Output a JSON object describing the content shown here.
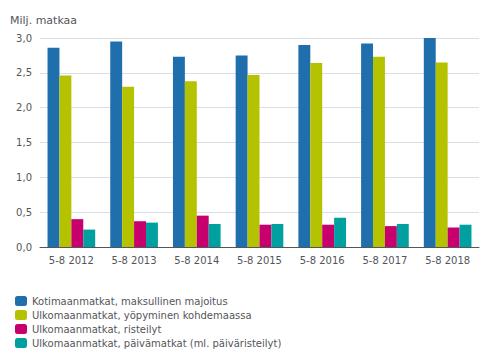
{
  "chart_data": {
    "type": "bar",
    "ylabel": "Milj. matkaa",
    "categories": [
      "5-8 2012",
      "5-8 2013",
      "5-8 2014",
      "5-8 2015",
      "5-8 2016",
      "5-8 2017",
      "5-8 2018"
    ],
    "series": [
      {
        "name": "Kotimaanmatkat, maksullinen majoitus",
        "color": "#1f6fad",
        "values": [
          2.86,
          2.95,
          2.73,
          2.75,
          2.9,
          2.92,
          3.0
        ]
      },
      {
        "name": "Ulkomaanmatkat, yöpyminen kohdemaassa",
        "color": "#b5c200",
        "values": [
          2.46,
          2.3,
          2.38,
          2.47,
          2.64,
          2.73,
          2.65
        ]
      },
      {
        "name": "Ulkomaanmatkat, risteilyt",
        "color": "#c8006e",
        "values": [
          0.4,
          0.37,
          0.45,
          0.32,
          0.32,
          0.3,
          0.28
        ]
      },
      {
        "name": "Ulkomaanmatkat, päivämatkat (ml. päiväristeilyt)",
        "color": "#00a0a0",
        "values": [
          0.25,
          0.35,
          0.33,
          0.33,
          0.42,
          0.33,
          0.32
        ]
      }
    ],
    "ylim": [
      0,
      3.0
    ],
    "yticks": [
      {
        "value": 0.0,
        "label": "0,0"
      },
      {
        "value": 0.5,
        "label": "0,5"
      },
      {
        "value": 1.0,
        "label": "1,0"
      },
      {
        "value": 1.5,
        "label": "1,5"
      },
      {
        "value": 2.0,
        "label": "2,0"
      },
      {
        "value": 2.5,
        "label": "2,5"
      },
      {
        "value": 3.0,
        "label": "3,0"
      }
    ],
    "grid": true,
    "legend": "bottom-left"
  }
}
